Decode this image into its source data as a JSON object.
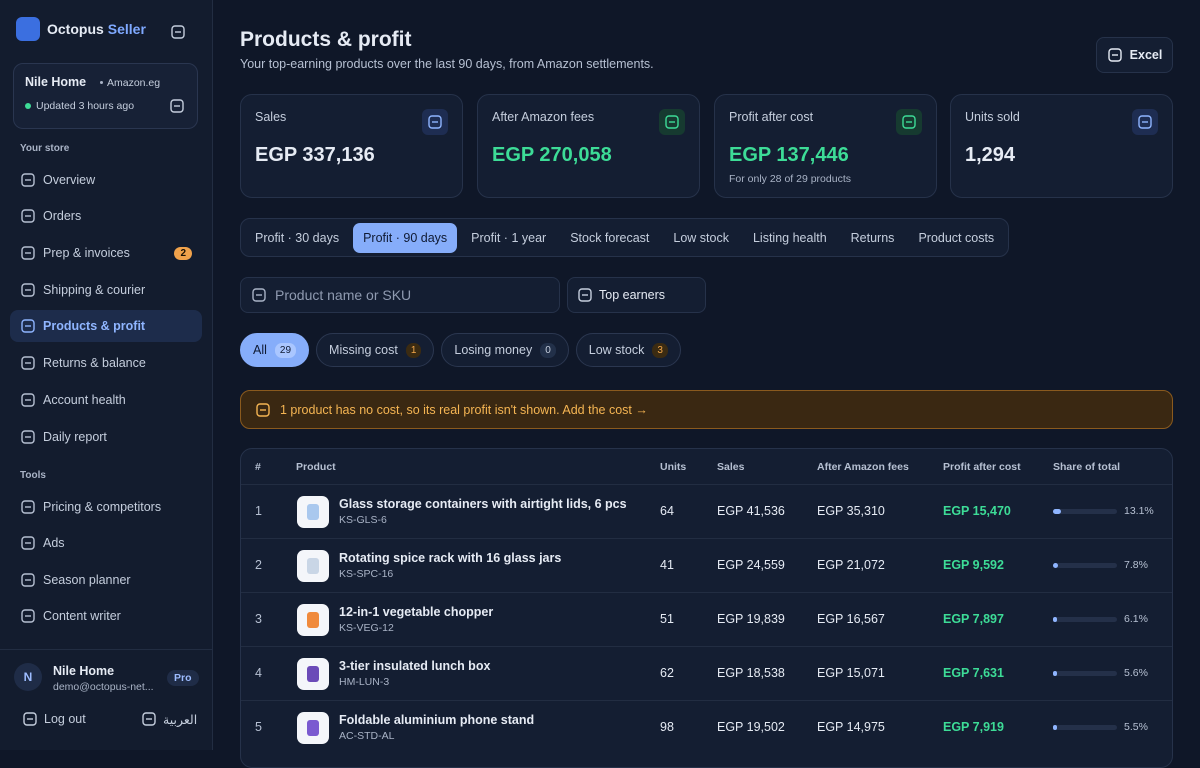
{
  "sidebar": {
    "brand": {
      "name": "Octopus",
      "accent": "Seller"
    },
    "store": {
      "name": "Nile Home",
      "marketplace": "Amazon.eg",
      "status": "Updated 3 hours ago"
    },
    "sections": [
      {
        "title": "Your store",
        "items": [
          {
            "label": "Overview"
          },
          {
            "label": "Orders"
          },
          {
            "label": "Prep & invoices",
            "badge": 2
          },
          {
            "label": "Shipping & courier"
          },
          {
            "label": "Products & profit"
          },
          {
            "label": "Returns & balance"
          },
          {
            "label": "Account health"
          },
          {
            "label": "Daily report"
          }
        ]
      },
      {
        "title": "Tools",
        "items": [
          {
            "label": "Pricing & competitors"
          },
          {
            "label": "Ads"
          },
          {
            "label": "Season planner"
          },
          {
            "label": "Content writer"
          }
        ]
      }
    ],
    "active_item": "Products & profit",
    "user": {
      "initial": "N",
      "name": "Nile Home",
      "email": "demo@octopus-net...",
      "plan": "Pro"
    },
    "logout": "Log out",
    "language": "العربية"
  },
  "header": {
    "title": "Products & profit",
    "subtitle": "Your top-earning products over the last 90 days, from Amazon settlements.",
    "export": "Excel"
  },
  "kpis": [
    {
      "label": "Sales",
      "value": "EGP 337,136"
    },
    {
      "label": "After Amazon fees",
      "value": "EGP 270,058"
    },
    {
      "label": "Profit after cost",
      "value": "EGP 137,446",
      "note": "For only 28 of 29 products"
    },
    {
      "label": "Units sold",
      "value": "1,294"
    }
  ],
  "tabs": [
    "Profit · 30 days",
    "Profit · 90 days",
    "Profit · 1 year",
    "Stock forecast",
    "Low stock",
    "Listing health",
    "Returns",
    "Product costs"
  ],
  "active_tab": "Profit · 90 days",
  "search_placeholder": "Product name or SKU",
  "sort": "Top earners",
  "filters": [
    {
      "label": "All",
      "count": 29
    },
    {
      "label": "Missing cost",
      "count": 1
    },
    {
      "label": "Losing money",
      "count": 0
    },
    {
      "label": "Low stock",
      "count": 3
    }
  ],
  "active_filter": "All",
  "alert": "1 product has no cost, so its real profit isn't shown. Add the cost →",
  "table": {
    "columns": [
      "#",
      "Product",
      "Units",
      "Sales",
      "After Amazon fees",
      "Profit after cost",
      "Share of total"
    ],
    "rows": [
      {
        "num": 1,
        "name": "Glass storage containers with airtight lids, 6 pcs",
        "sku": "KS-GLS-6",
        "units": 64,
        "sales": "EGP 41,536",
        "after_fees": "EGP 35,310",
        "profit": "EGP 15,470",
        "share": {
          "value": 13.1,
          "label": "13.1%"
        }
      },
      {
        "num": 2,
        "name": "Rotating spice rack with 16 glass jars",
        "sku": "KS-SPC-16",
        "units": 41,
        "sales": "EGP 24,559",
        "after_fees": "EGP 21,072",
        "profit": "EGP 9,592",
        "share": {
          "value": 7.8,
          "label": "7.8%"
        }
      },
      {
        "num": 3,
        "name": "12-in-1 vegetable chopper",
        "sku": "KS-VEG-12",
        "units": 51,
        "sales": "EGP 19,839",
        "after_fees": "EGP 16,567",
        "profit": "EGP 7,897",
        "share": {
          "value": 6.1,
          "label": "6.1%"
        }
      },
      {
        "num": 4,
        "name": "3-tier insulated lunch box",
        "sku": "HM-LUN-3",
        "units": 62,
        "sales": "EGP 18,538",
        "after_fees": "EGP 15,071",
        "profit": "EGP 7,631",
        "share": {
          "value": 5.6,
          "label": "5.6%"
        }
      },
      {
        "num": 5,
        "name": "Foldable aluminium phone stand",
        "sku": "AC-STD-AL",
        "units": 98,
        "sales": "EGP 19,502",
        "after_fees": "EGP 14,975",
        "profit": "EGP 7,919",
        "share": {
          "value": 5.5,
          "label": "5.5%"
        }
      }
    ]
  }
}
